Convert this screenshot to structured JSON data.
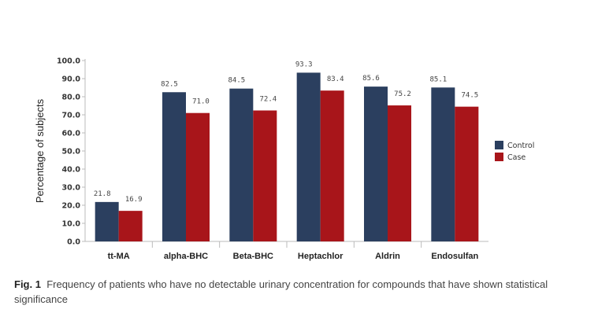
{
  "chart_data": {
    "type": "bar",
    "categories": [
      "tt-MA",
      "alpha-BHC",
      "Beta-BHC",
      "Heptachlor",
      "Aldrin",
      "Endosulfan"
    ],
    "series": [
      {
        "name": "Control",
        "values": [
          21.8,
          82.5,
          84.5,
          93.3,
          85.6,
          85.1
        ],
        "color": "#2b3f5f"
      },
      {
        "name": "Case",
        "values": [
          16.9,
          71.0,
          72.4,
          83.4,
          75.2,
          74.5
        ],
        "color": "#a8151a"
      }
    ],
    "ylabel": "Percentage of subjects",
    "xlabel": "",
    "ylim": [
      0,
      100
    ],
    "yticks": [
      "0.0",
      "10.0",
      "20.0",
      "30.0",
      "40.0",
      "50.0",
      "60.0",
      "70.0",
      "80.0",
      "90.0",
      "100.0"
    ],
    "grid": false,
    "legend": "right"
  },
  "caption": {
    "label": "Fig. 1",
    "text": "Frequency of patients who have no detectable urinary concentration for compounds that have shown statistical significance"
  }
}
